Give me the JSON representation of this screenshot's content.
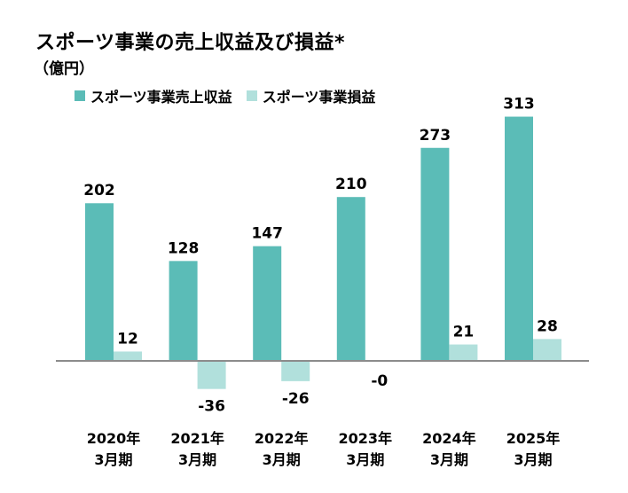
{
  "title": "スポーツ事業の売上収益及び損益*",
  "unit": "（億円）",
  "colors": {
    "revenue": "#5bbcb7",
    "profit": "#b1e0dc",
    "axis": "#8c8c8c"
  },
  "chart_data": {
    "type": "bar",
    "title": "スポーツ事業の売上収益及び損益*",
    "ylabel": "（億円）",
    "categories": [
      [
        "2020年",
        "3月期"
      ],
      [
        "2021年",
        "3月期"
      ],
      [
        "2022年",
        "3月期"
      ],
      [
        "2023年",
        "3月期"
      ],
      [
        "2024年",
        "3月期"
      ],
      [
        "2025年",
        "3月期"
      ]
    ],
    "series": [
      {
        "name": "スポーツ事業売上収益",
        "values": [
          202,
          128,
          147,
          210,
          273,
          313
        ],
        "labels": [
          "202",
          "128",
          "147",
          "210",
          "273",
          "313"
        ]
      },
      {
        "name": "スポーツ事業損益",
        "values": [
          12,
          -36,
          -26,
          0,
          21,
          28
        ],
        "labels": [
          "12",
          "-36",
          "-26",
          "-0",
          "21",
          "28"
        ]
      }
    ],
    "ylim": [
      -40,
      313
    ],
    "legend": "top-left",
    "grid": false
  }
}
